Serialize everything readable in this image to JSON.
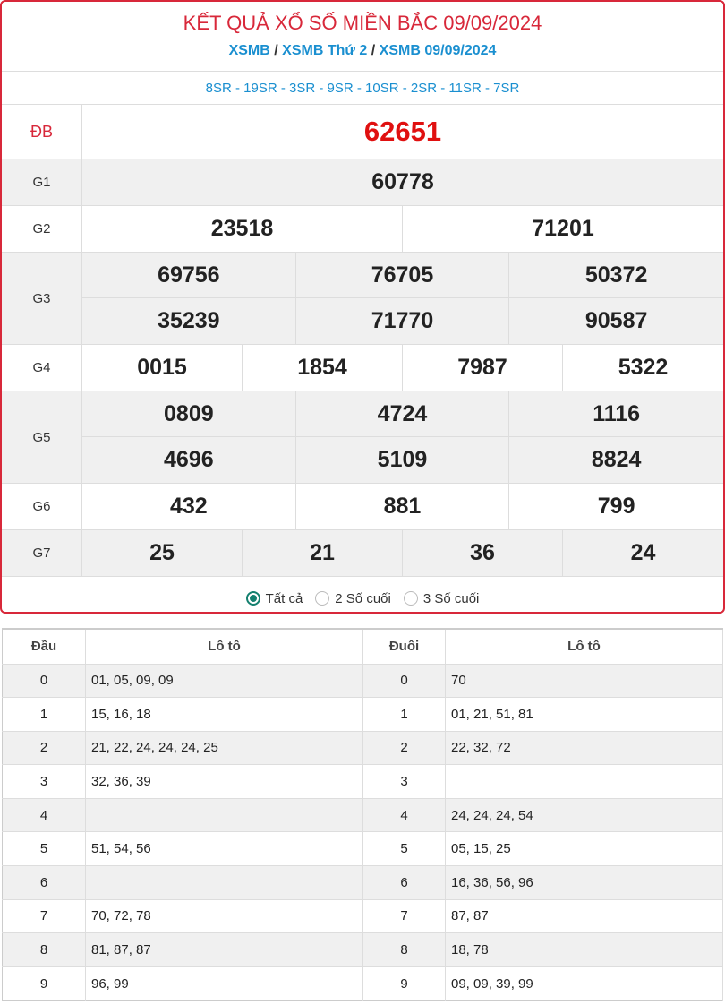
{
  "header": {
    "title": "KẾT QUẢ XỔ SỐ MIỀN BẮC 09/09/2024",
    "breadcrumbs": [
      "XSMB",
      "XSMB Thứ 2",
      "XSMB 09/09/2024"
    ],
    "separator": "/",
    "codes": "8SR - 19SR - 3SR - 9SR - 10SR - 2SR - 11SR - 7SR"
  },
  "prizes": [
    {
      "label": "ĐB",
      "numbers": [
        "62651"
      ],
      "cols": 1,
      "special": true
    },
    {
      "label": "G1",
      "numbers": [
        "60778"
      ],
      "cols": 1
    },
    {
      "label": "G2",
      "numbers": [
        "23518",
        "71201"
      ],
      "cols": 2
    },
    {
      "label": "G3",
      "numbers": [
        "69756",
        "76705",
        "50372",
        "35239",
        "71770",
        "90587"
      ],
      "cols": 3
    },
    {
      "label": "G4",
      "numbers": [
        "0015",
        "1854",
        "7987",
        "5322"
      ],
      "cols": 4
    },
    {
      "label": "G5",
      "numbers": [
        "0809",
        "4724",
        "1116",
        "4696",
        "5109",
        "8824"
      ],
      "cols": 3
    },
    {
      "label": "G6",
      "numbers": [
        "432",
        "881",
        "799"
      ],
      "cols": 3
    },
    {
      "label": "G7",
      "numbers": [
        "25",
        "21",
        "36",
        "24"
      ],
      "cols": 4
    }
  ],
  "filter": {
    "options": [
      "Tất cả",
      "2 Số cuối",
      "3 Số cuối"
    ],
    "selected": 0
  },
  "loto": {
    "headers": [
      "Đầu",
      "Lô tô",
      "Đuôi",
      "Lô tô"
    ],
    "rows": [
      [
        "0",
        "01, 05, 09, 09",
        "0",
        "70"
      ],
      [
        "1",
        "15, 16, 18",
        "1",
        "01, 21, 51, 81"
      ],
      [
        "2",
        "21, 22, 24, 24, 24, 25",
        "2",
        "22, 32, 72"
      ],
      [
        "3",
        "32, 36, 39",
        "3",
        ""
      ],
      [
        "4",
        "",
        "4",
        "24, 24, 24, 54"
      ],
      [
        "5",
        "51, 54, 56",
        "5",
        "05, 15, 25"
      ],
      [
        "6",
        "",
        "6",
        "16, 36, 56, 96"
      ],
      [
        "7",
        "70, 72, 78",
        "7",
        "87, 87"
      ],
      [
        "8",
        "81, 87, 87",
        "8",
        "18, 78"
      ],
      [
        "9",
        "96, 99",
        "9",
        "09, 09, 39, 99"
      ]
    ]
  },
  "colors": {
    "accent": "#d8283a",
    "link": "#1a8fd0",
    "radio": "#14806f"
  }
}
